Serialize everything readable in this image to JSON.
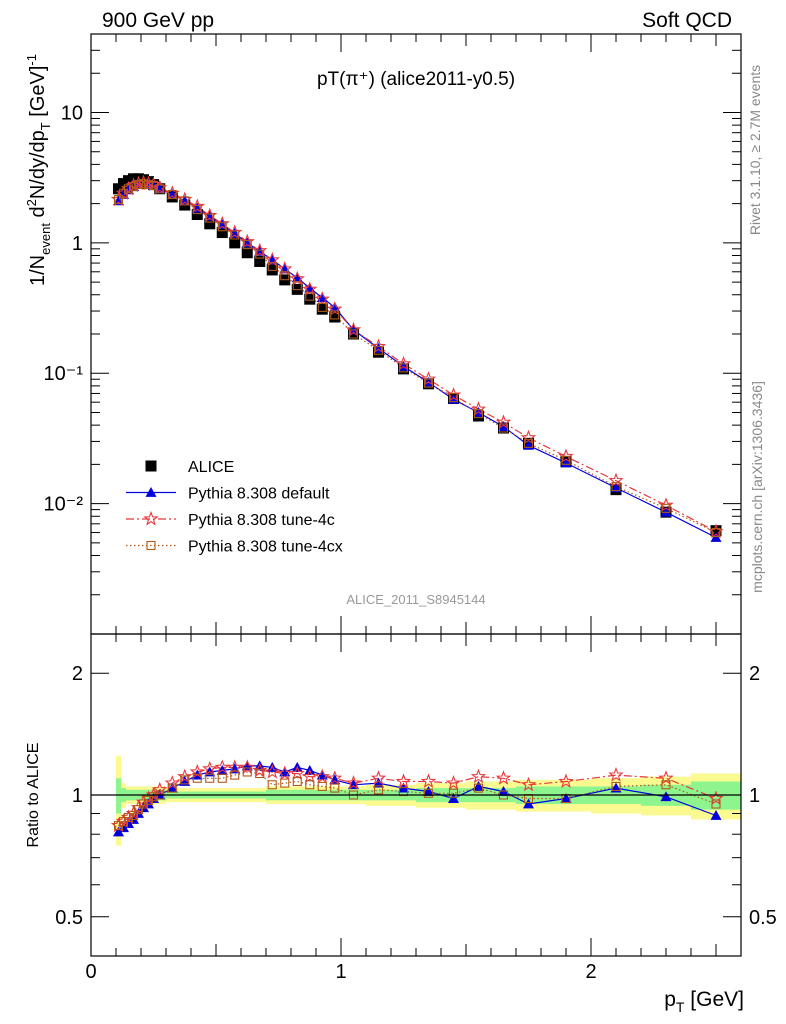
{
  "header": {
    "left": "900 GeV pp",
    "right": "Soft QCD",
    "plot_title": "pT(π⁺) (alice2011-y0.5)",
    "analysis_id": "ALICE_2011_S8945144"
  },
  "side": {
    "rivet": "Rivet 3.1.10, ≥ 2.7M events",
    "mcplots": "mcplots.cern.ch [arXiv:1306.3436]"
  },
  "legend": {
    "data": "ALICE",
    "default": "Pythia 8.308 default",
    "tune4c": "Pythia 8.308 tune-4c",
    "tune4cx": "Pythia 8.308 tune-4cx"
  },
  "axes": {
    "ylabel_main": "1/N_event d²N/dy/dp_T [GeV]⁻¹",
    "ylabel_ratio": "Ratio to ALICE",
    "xlabel": "p_T [GeV]",
    "xticks": [
      "0",
      "1",
      "2"
    ],
    "yticks_main": [
      "10⁻²",
      "10⁻¹",
      "1",
      "10"
    ],
    "yticks_ratio": [
      "0.5",
      "1",
      "2"
    ]
  },
  "colors": {
    "data": "#000000",
    "default": "#0000dd",
    "tune4c": "#e8383d",
    "tune4cx": "#b05a1a",
    "band_inner": "#8ef58e",
    "band_outer": "#fafa90"
  },
  "chart_data": [
    {
      "type": "scatter",
      "panel": "main",
      "title": "pT(π⁺) (alice2011-y0.5)",
      "xlabel": "p_T [GeV]",
      "ylabel": "1/N_event d²N/dy/dp_T [GeV]⁻¹",
      "xlim": [
        0,
        2.6
      ],
      "ylim": [
        0.001,
        40
      ],
      "yscale": "log",
      "legend": "middle-left",
      "x": [
        0.11,
        0.13,
        0.15,
        0.17,
        0.19,
        0.21,
        0.23,
        0.25,
        0.275,
        0.325,
        0.375,
        0.425,
        0.475,
        0.525,
        0.575,
        0.625,
        0.675,
        0.725,
        0.775,
        0.825,
        0.875,
        0.925,
        0.975,
        1.05,
        1.15,
        1.25,
        1.35,
        1.45,
        1.55,
        1.65,
        1.75,
        1.9,
        2.1,
        2.3,
        2.5
      ],
      "series": [
        {
          "name": "ALICE",
          "values": [
            2.6,
            2.85,
            3.0,
            3.1,
            3.1,
            3.05,
            2.95,
            2.8,
            2.6,
            2.25,
            1.95,
            1.65,
            1.4,
            1.2,
            1.0,
            0.84,
            0.72,
            0.62,
            0.52,
            0.44,
            0.37,
            0.31,
            0.27,
            0.2,
            0.145,
            0.108,
            0.083,
            0.064,
            0.047,
            0.038,
            0.029,
            0.021,
            0.0128,
            0.0086,
            0.0062
          ]
        },
        {
          "name": "Pythia 8.308 default",
          "values": [
            2.1,
            2.35,
            2.55,
            2.7,
            2.8,
            2.85,
            2.8,
            2.75,
            2.6,
            2.35,
            2.1,
            1.85,
            1.6,
            1.38,
            1.18,
            1.0,
            0.86,
            0.74,
            0.63,
            0.54,
            0.45,
            0.38,
            0.32,
            0.215,
            0.155,
            0.113,
            0.085,
            0.063,
            0.05,
            0.039,
            0.028,
            0.0205,
            0.0132,
            0.0086,
            0.0055
          ]
        },
        {
          "name": "Pythia 8.308 tune-4c",
          "values": [
            2.15,
            2.4,
            2.6,
            2.75,
            2.85,
            2.9,
            2.85,
            2.8,
            2.65,
            2.4,
            2.15,
            1.9,
            1.62,
            1.4,
            1.2,
            1.02,
            0.87,
            0.74,
            0.63,
            0.53,
            0.44,
            0.37,
            0.31,
            0.215,
            0.16,
            0.118,
            0.09,
            0.068,
            0.053,
            0.042,
            0.032,
            0.023,
            0.015,
            0.0097,
            0.0061
          ]
        },
        {
          "name": "Pythia 8.308 tune-4cx",
          "values": [
            2.15,
            2.4,
            2.6,
            2.7,
            2.8,
            2.85,
            2.8,
            2.75,
            2.6,
            2.35,
            2.1,
            1.8,
            1.55,
            1.33,
            1.15,
            0.97,
            0.82,
            0.66,
            0.56,
            0.47,
            0.39,
            0.32,
            0.28,
            0.2,
            0.15,
            0.11,
            0.084,
            0.065,
            0.049,
            0.038,
            0.029,
            0.0215,
            0.0135,
            0.0092,
            0.006
          ]
        }
      ]
    },
    {
      "type": "line",
      "panel": "ratio",
      "ylabel": "Ratio to ALICE",
      "xlabel": "p_T [GeV]",
      "xlim": [
        0,
        2.6
      ],
      "ylim": [
        0.4,
        2.5
      ],
      "yscale": "log",
      "x": [
        0.11,
        0.13,
        0.15,
        0.17,
        0.19,
        0.21,
        0.23,
        0.25,
        0.275,
        0.325,
        0.375,
        0.425,
        0.475,
        0.525,
        0.575,
        0.625,
        0.675,
        0.725,
        0.775,
        0.825,
        0.875,
        0.925,
        0.975,
        1.05,
        1.15,
        1.25,
        1.35,
        1.45,
        1.55,
        1.65,
        1.75,
        1.9,
        2.1,
        2.3,
        2.5
      ],
      "series": [
        {
          "name": "Pythia 8.308 default",
          "values": [
            0.81,
            0.83,
            0.85,
            0.87,
            0.9,
            0.93,
            0.95,
            0.98,
            1.0,
            1.04,
            1.08,
            1.12,
            1.14,
            1.15,
            1.16,
            1.18,
            1.18,
            1.17,
            1.14,
            1.17,
            1.15,
            1.12,
            1.09,
            1.06,
            1.07,
            1.04,
            1.02,
            0.98,
            1.05,
            1.02,
            0.95,
            0.98,
            1.04,
            0.99,
            0.89
          ]
        },
        {
          "name": "Pythia 8.308 tune-4c",
          "values": [
            0.84,
            0.86,
            0.88,
            0.9,
            0.93,
            0.96,
            0.98,
            1.0,
            1.03,
            1.07,
            1.11,
            1.14,
            1.16,
            1.17,
            1.17,
            1.17,
            1.15,
            1.14,
            1.13,
            1.13,
            1.11,
            1.11,
            1.1,
            1.07,
            1.1,
            1.08,
            1.08,
            1.07,
            1.11,
            1.1,
            1.06,
            1.08,
            1.12,
            1.1,
            0.98
          ]
        },
        {
          "name": "Pythia 8.308 tune-4cx",
          "values": [
            0.84,
            0.86,
            0.88,
            0.89,
            0.92,
            0.95,
            0.97,
            0.99,
            1.0,
            1.04,
            1.09,
            1.1,
            1.1,
            1.1,
            1.12,
            1.14,
            1.13,
            1.06,
            1.07,
            1.08,
            1.06,
            1.05,
            1.04,
            1.0,
            1.03,
            1.02,
            1.01,
            1.01,
            1.04,
            1.0,
            0.98,
            0.98,
            1.05,
            1.06,
            0.95
          ]
        }
      ],
      "bands": {
        "x_edges": [
          0.1,
          0.12,
          0.14,
          0.16,
          0.18,
          0.2,
          0.22,
          0.24,
          0.26,
          0.3,
          0.4,
          0.5,
          0.6,
          0.7,
          0.8,
          0.9,
          1.0,
          1.1,
          1.2,
          1.3,
          1.4,
          1.5,
          1.6,
          1.7,
          1.8,
          2.0,
          2.2,
          2.4,
          2.6
        ],
        "inner": [
          0.1,
          0.04,
          0.03,
          0.03,
          0.03,
          0.03,
          0.03,
          0.03,
          0.03,
          0.02,
          0.02,
          0.02,
          0.02,
          0.03,
          0.03,
          0.03,
          0.03,
          0.03,
          0.03,
          0.04,
          0.04,
          0.04,
          0.04,
          0.05,
          0.05,
          0.05,
          0.06,
          0.08
        ],
        "outer": [
          0.25,
          0.07,
          0.05,
          0.05,
          0.05,
          0.05,
          0.05,
          0.05,
          0.05,
          0.04,
          0.04,
          0.04,
          0.04,
          0.05,
          0.05,
          0.05,
          0.05,
          0.06,
          0.06,
          0.07,
          0.07,
          0.08,
          0.08,
          0.09,
          0.09,
          0.1,
          0.11,
          0.13
        ]
      }
    }
  ]
}
